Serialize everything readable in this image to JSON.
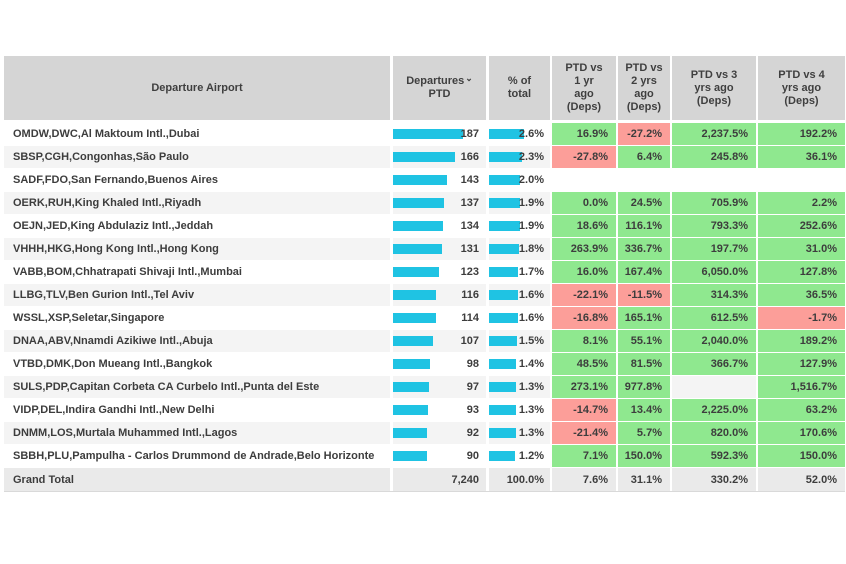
{
  "colors": {
    "positive_bg": "#8fe88f",
    "negative_bg": "#fc9e99",
    "bar": "#1fc3e3",
    "header_bg": "#d5d5d5",
    "stripe_bg": "#f4f4f4",
    "total_bg": "#eaeaea"
  },
  "chart_data": {
    "type": "table",
    "columns": [
      "Departure Airport",
      "Departures PTD",
      "% of total",
      "PTD vs 1 yr ago (Deps)",
      "PTD vs 2 yrs ago (Deps)",
      "PTD vs 3 yrs ago (Deps)",
      "PTD vs 4 yrs ago (Deps)"
    ],
    "header_display": {
      "airport": "Departure Airport",
      "departures_line1": "Departures",
      "sort_icon": "⌄",
      "departures_line2": "PTD",
      "pct": "% of\ntotal",
      "vs1": "PTD vs\n1 yr\nago\n(Deps)",
      "vs2": "PTD vs\n2 yrs\nago\n(Deps)",
      "vs3": "PTD vs 3\nyrs ago\n(Deps)",
      "vs4": "PTD vs 4\nyrs ago\n(Deps)"
    },
    "rows": [
      [
        "OMDW,DWC,Al Maktoum Intl.,Dubai",
        "187",
        "2.6%",
        "16.9%",
        "-27.2%",
        "2,237.5%",
        "192.2%"
      ],
      [
        "SBSP,CGH,Congonhas,São Paulo",
        "166",
        "2.3%",
        "-27.8%",
        "6.4%",
        "245.8%",
        "36.1%"
      ],
      [
        "SADF,FDO,San Fernando,Buenos Aires",
        "143",
        "2.0%",
        "",
        "",
        "",
        ""
      ],
      [
        "OERK,RUH,King Khaled Intl.,Riyadh",
        "137",
        "1.9%",
        "0.0%",
        "24.5%",
        "705.9%",
        "2.2%"
      ],
      [
        "OEJN,JED,King Abdulaziz Intl.,Jeddah",
        "134",
        "1.9%",
        "18.6%",
        "116.1%",
        "793.3%",
        "252.6%"
      ],
      [
        "VHHH,HKG,Hong Kong Intl.,Hong Kong",
        "131",
        "1.8%",
        "263.9%",
        "336.7%",
        "197.7%",
        "31.0%"
      ],
      [
        "VABB,BOM,Chhatrapati Shivaji Intl.,Mumbai",
        "123",
        "1.7%",
        "16.0%",
        "167.4%",
        "6,050.0%",
        "127.8%"
      ],
      [
        "LLBG,TLV,Ben Gurion Intl.,Tel Aviv",
        "116",
        "1.6%",
        "-22.1%",
        "-11.5%",
        "314.3%",
        "36.5%"
      ],
      [
        "WSSL,XSP,Seletar,Singapore",
        "114",
        "1.6%",
        "-16.8%",
        "165.1%",
        "612.5%",
        "-1.7%"
      ],
      [
        "DNAA,ABV,Nnamdi Azikiwe Intl.,Abuja",
        "107",
        "1.5%",
        "8.1%",
        "55.1%",
        "2,040.0%",
        "189.2%"
      ],
      [
        "VTBD,DMK,Don Mueang Intl.,Bangkok",
        "98",
        "1.4%",
        "48.5%",
        "81.5%",
        "366.7%",
        "127.9%"
      ],
      [
        "SULS,PDP,Capitan Corbeta CA Curbelo Intl.,Punta del Este",
        "97",
        "1.3%",
        "273.1%",
        "977.8%",
        "",
        "1,516.7%"
      ],
      [
        "VIDP,DEL,Indira Gandhi Intl.,New Delhi",
        "93",
        "1.3%",
        "-14.7%",
        "13.4%",
        "2,225.0%",
        "63.2%"
      ],
      [
        "DNMM,LOS,Murtala Muhammed Intl.,Lagos",
        "92",
        "1.3%",
        "-21.4%",
        "5.7%",
        "820.0%",
        "170.6%"
      ],
      [
        "SBBH,PLU,Pampulha - Carlos Drummond de Andrade,Belo Horizonte",
        "90",
        "1.2%",
        "7.1%",
        "150.0%",
        "592.3%",
        "150.0%"
      ]
    ],
    "grand_total": [
      "Grand Total",
      "7,240",
      "100.0%",
      "7.6%",
      "31.1%",
      "330.2%",
      "52.0%"
    ]
  }
}
